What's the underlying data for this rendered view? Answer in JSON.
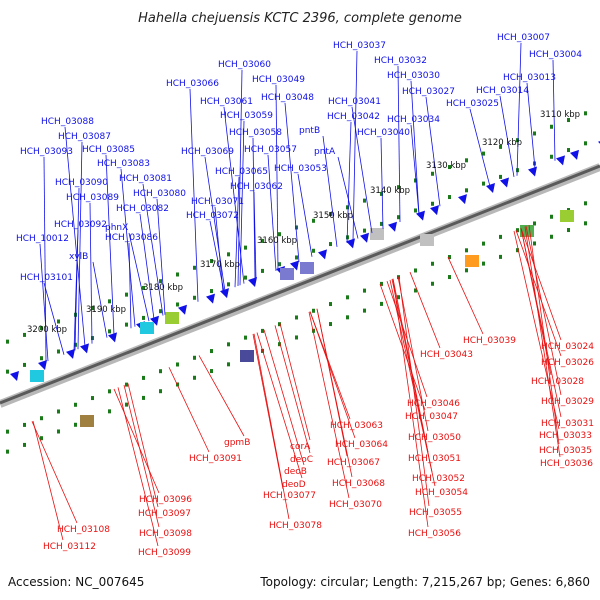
{
  "title": "Hahella chejuensis KCTC 2396, complete genome",
  "footer": {
    "accession": "Accession: NC_007645",
    "summary": "Topology: circular; Length: 7,215,267 bp; Genes: 6,860"
  },
  "colors": {
    "forward": "#1010e8",
    "reverse": "#e81010",
    "tick": "#1a7a1a",
    "backbone": "#707070"
  },
  "scale_labels": [
    "3110 kbp",
    "3120 kbp",
    "3130 kbp",
    "3140 kbp",
    "3150 kbp",
    "3160 kbp",
    "3170 kbp",
    "3180 kbp",
    "3190 kbp",
    "3200 kbp"
  ],
  "forward_labels": [
    "HCH_03007",
    "HCH_03004",
    "HCH_03013",
    "HCH_03014",
    "HCH_03025",
    "HCH_03037",
    "HCH_03032",
    "HCH_03030",
    "HCH_03027",
    "HCH_03041",
    "HCH_03042",
    "HCH_03040",
    "HCH_03034",
    "pntB",
    "pntA",
    "HCH_03060",
    "HCH_03049",
    "HCH_03066",
    "HCH_03048",
    "HCH_03061",
    "HCH_03059",
    "HCH_03058",
    "HCH_03057",
    "HCH_03053",
    "HCH_03069",
    "HCH_03065",
    "HCH_03062",
    "HCH_03071",
    "HCH_03072",
    "HCH_03088",
    "HCH_03087",
    "HCH_03093",
    "HCH_03085",
    "HCH_03083",
    "HCH_03081",
    "HCH_03090",
    "HCH_03089",
    "HCH_03080",
    "HCH_03082",
    "phnX",
    "HCH_03092",
    "HCH_03086",
    "HCH_10012",
    "xylB",
    "HCH_03101"
  ],
  "reverse_labels": [
    "HCH_03043",
    "HCH_03039",
    "HCH_03024",
    "HCH_03026",
    "HCH_03028",
    "HCH_03029",
    "HCH_03031",
    "HCH_03033",
    "HCH_03035",
    "HCH_03036",
    "HCH_03046",
    "HCH_03047",
    "HCH_03050",
    "HCH_03051",
    "HCH_03052",
    "HCH_03054",
    "HCH_03055",
    "HCH_03056",
    "HCH_03063",
    "HCH_03064",
    "HCH_03067",
    "HCH_03068",
    "HCH_03070",
    "gpmB",
    "corA",
    "deoC",
    "deoB",
    "deoD",
    "HCH_03077",
    "HCH_03078",
    "HCH_03091",
    "HCH_03096",
    "HCH_03097",
    "HCH_03098",
    "HCH_03099",
    "HCH_03108",
    "HCH_03112"
  ]
}
